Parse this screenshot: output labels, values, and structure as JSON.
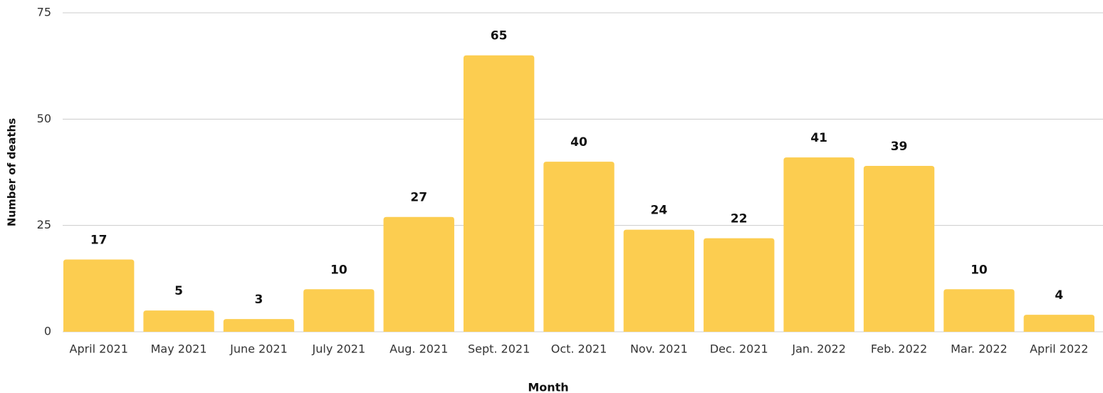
{
  "chart_data": {
    "type": "bar",
    "x_label": "Month",
    "y_label": "Number of deaths",
    "categories": [
      "April 2021",
      "May 2021",
      "June 2021",
      "July 2021",
      "Aug. 2021",
      "Sept. 2021",
      "Oct. 2021",
      "Nov. 2021",
      "Dec. 2021",
      "Jan. 2022",
      "Feb. 2022",
      "Mar. 2022",
      "April 2022"
    ],
    "values": [
      17,
      5,
      3,
      10,
      27,
      65,
      40,
      24,
      22,
      41,
      39,
      10,
      4
    ],
    "color": "#fccd50",
    "ylim": [
      0,
      75
    ],
    "yticks": [
      0,
      25,
      50,
      75
    ],
    "grid": true
  }
}
